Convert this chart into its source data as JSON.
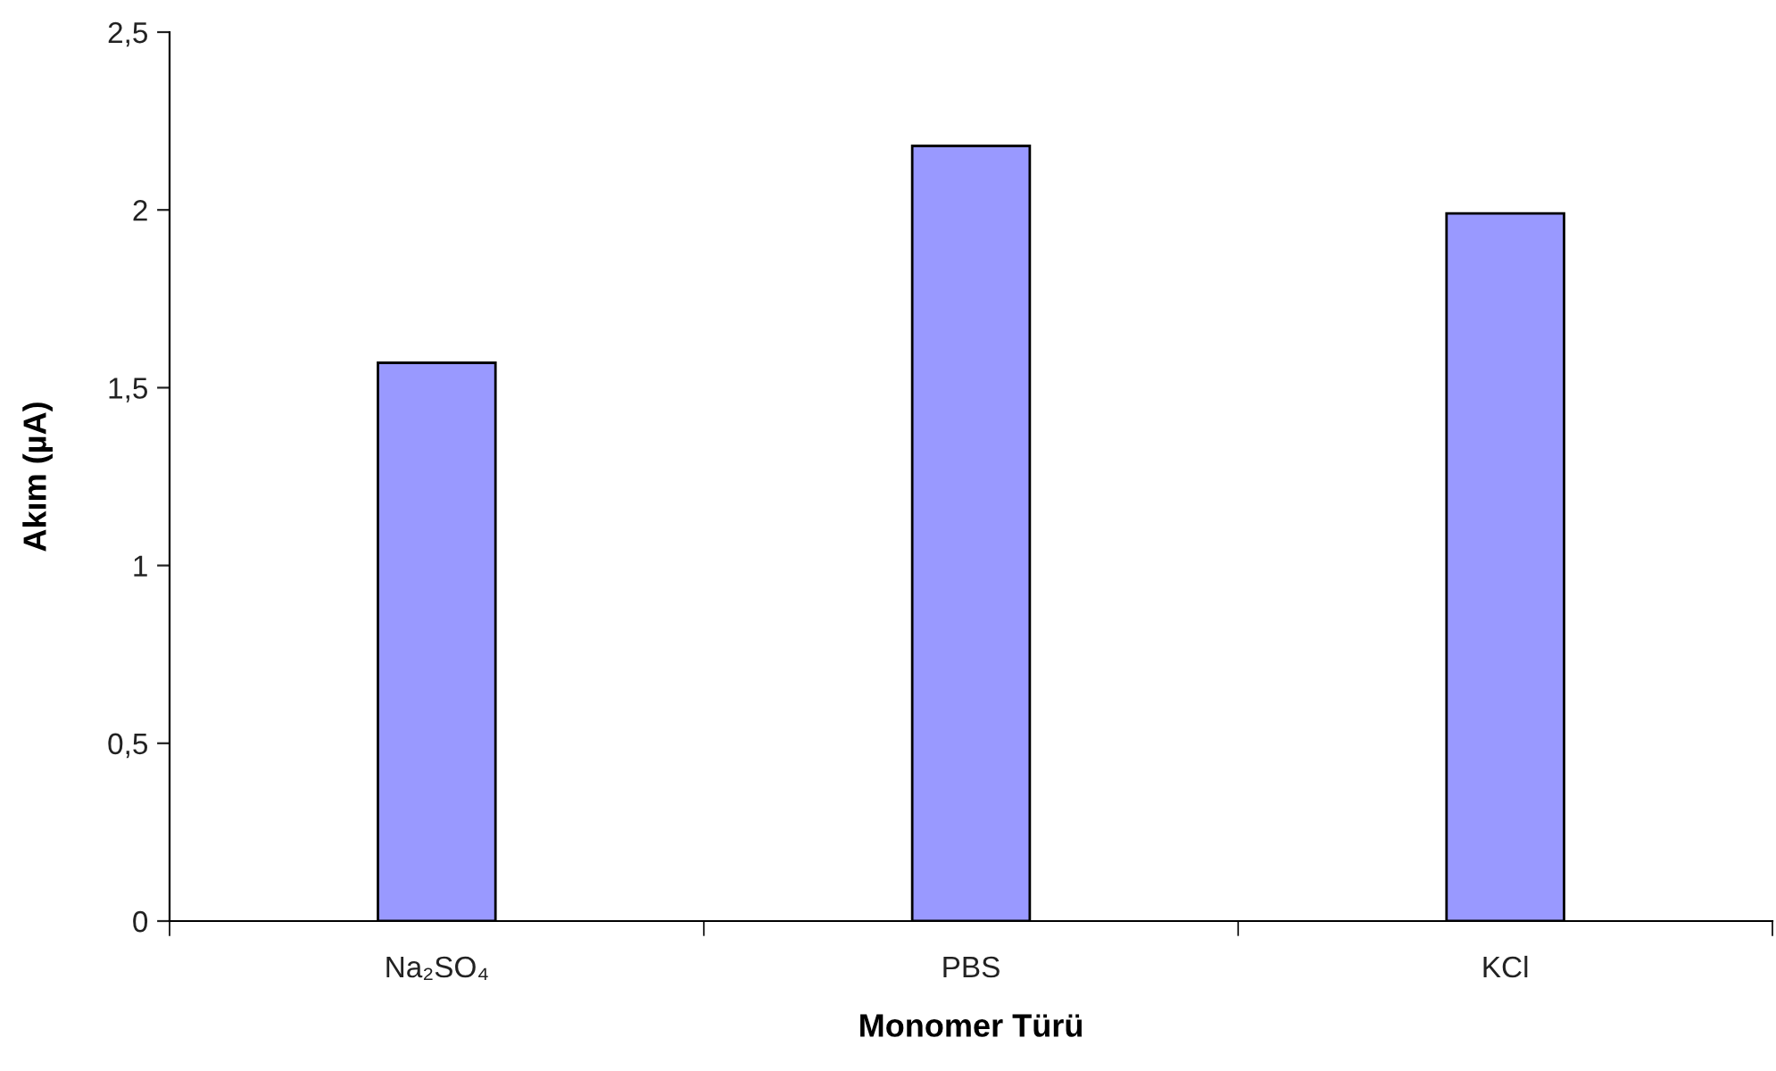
{
  "chart_data": {
    "type": "bar",
    "xlabel": "Monomer Türü",
    "ylabel": "Akım (µA)",
    "categories": [
      "Na₂SO₄",
      "PBS",
      "KCl"
    ],
    "values": [
      1.57,
      2.18,
      1.99
    ],
    "color": "#9999ff",
    "ylim": [
      0,
      2.5
    ],
    "yticks": [
      0,
      {
        "value": 0.5,
        "label": "0,5"
      },
      1,
      {
        "value": 1.5,
        "label": "1,5"
      },
      2,
      {
        "value": 2.5,
        "label": "2,5"
      }
    ],
    "grid": false,
    "legend": false
  }
}
